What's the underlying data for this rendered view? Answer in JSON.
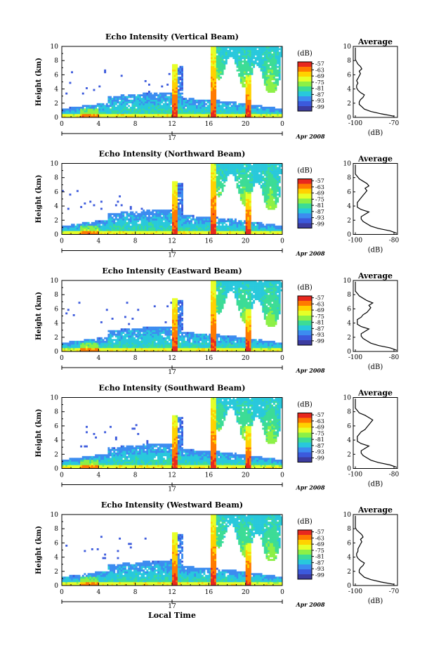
{
  "chart_data": {
    "type": "heatmap",
    "panels": [
      {
        "title": "Echo Intensity (Vertical Beam)",
        "avg_x_ticks": [
          "-100",
          "-70"
        ],
        "avg_profile": [
          -70,
          -80,
          -88,
          -93,
          -95,
          -97,
          -97,
          -96,
          -94,
          -93,
          -96,
          -98,
          -99,
          -99,
          -98,
          -99,
          -98,
          -97,
          -96,
          -97,
          -95,
          -96,
          -98,
          -99,
          -100,
          -100,
          -100,
          -100,
          -100,
          -100
        ]
      },
      {
        "title": "Echo Intensity (Northward Beam)",
        "avg_x_ticks": [
          "-100",
          "-80"
        ],
        "avg_profile": [
          -72,
          -82,
          -88,
          -92,
          -94,
          -96,
          -97,
          -97,
          -95,
          -93,
          -97,
          -99,
          -99,
          -99,
          -98,
          -97,
          -96,
          -95,
          -94,
          -95,
          -93,
          -94,
          -96,
          -98,
          -99,
          -100,
          -100,
          -100,
          -100,
          -100
        ]
      },
      {
        "title": "Echo Intensity (Eastward Beam)",
        "avg_x_ticks": [
          "-100",
          "-80"
        ],
        "avg_profile": [
          -72,
          -82,
          -88,
          -92,
          -94,
          -96,
          -97,
          -97,
          -95,
          -93,
          -97,
          -99,
          -99,
          -99,
          -97,
          -96,
          -94,
          -93,
          -92,
          -93,
          -91,
          -94,
          -96,
          -98,
          -99,
          -100,
          -100,
          -100,
          -100,
          -100
        ]
      },
      {
        "title": "Echo Intensity (Southward Beam)",
        "avg_x_ticks": [
          "-100",
          "-80"
        ],
        "avg_profile": [
          -72,
          -82,
          -88,
          -92,
          -94,
          -96,
          -97,
          -97,
          -95,
          -93,
          -97,
          -99,
          -99,
          -99,
          -98,
          -97,
          -95,
          -94,
          -93,
          -92,
          -91,
          -93,
          -95,
          -98,
          -99,
          -100,
          -100,
          -100,
          -100,
          -100
        ]
      },
      {
        "title": "Echo Intensity (Westward Beam)",
        "avg_x_ticks": [
          "-100",
          "-70"
        ],
        "avg_profile": [
          -70,
          -80,
          -88,
          -93,
          -95,
          -97,
          -97,
          -96,
          -94,
          -93,
          -96,
          -98,
          -99,
          -99,
          -98,
          -98,
          -97,
          -96,
          -95,
          -96,
          -94,
          -95,
          -97,
          -99,
          -100,
          -100,
          -100,
          -100,
          -100,
          -100
        ]
      }
    ],
    "x_ticks": [
      "0",
      "4",
      "8",
      "12",
      "16",
      "20",
      "0"
    ],
    "xlim": [
      0,
      24
    ],
    "day_label": "17",
    "date_label": "Apr 2008",
    "xlabel": "Local Time",
    "ylabel": "Height (km)",
    "y_ticks": [
      "0",
      "2",
      "4",
      "6",
      "8",
      "10"
    ],
    "ylim": [
      0,
      10
    ],
    "colorbar": {
      "title": "(dB)",
      "labels": [
        "-57",
        "-63",
        "-69",
        "-75",
        "-81",
        "-87",
        "-93",
        "-99"
      ],
      "colors": [
        "#e8281e",
        "#ff7a00",
        "#ffd200",
        "#e6ff28",
        "#8cf046",
        "#3cdc96",
        "#28c8dc",
        "#3c8cf0",
        "#3c5adc",
        "#3c3ca0"
      ]
    },
    "avg_title": "Average",
    "avg_xlabel": "(dB)"
  }
}
